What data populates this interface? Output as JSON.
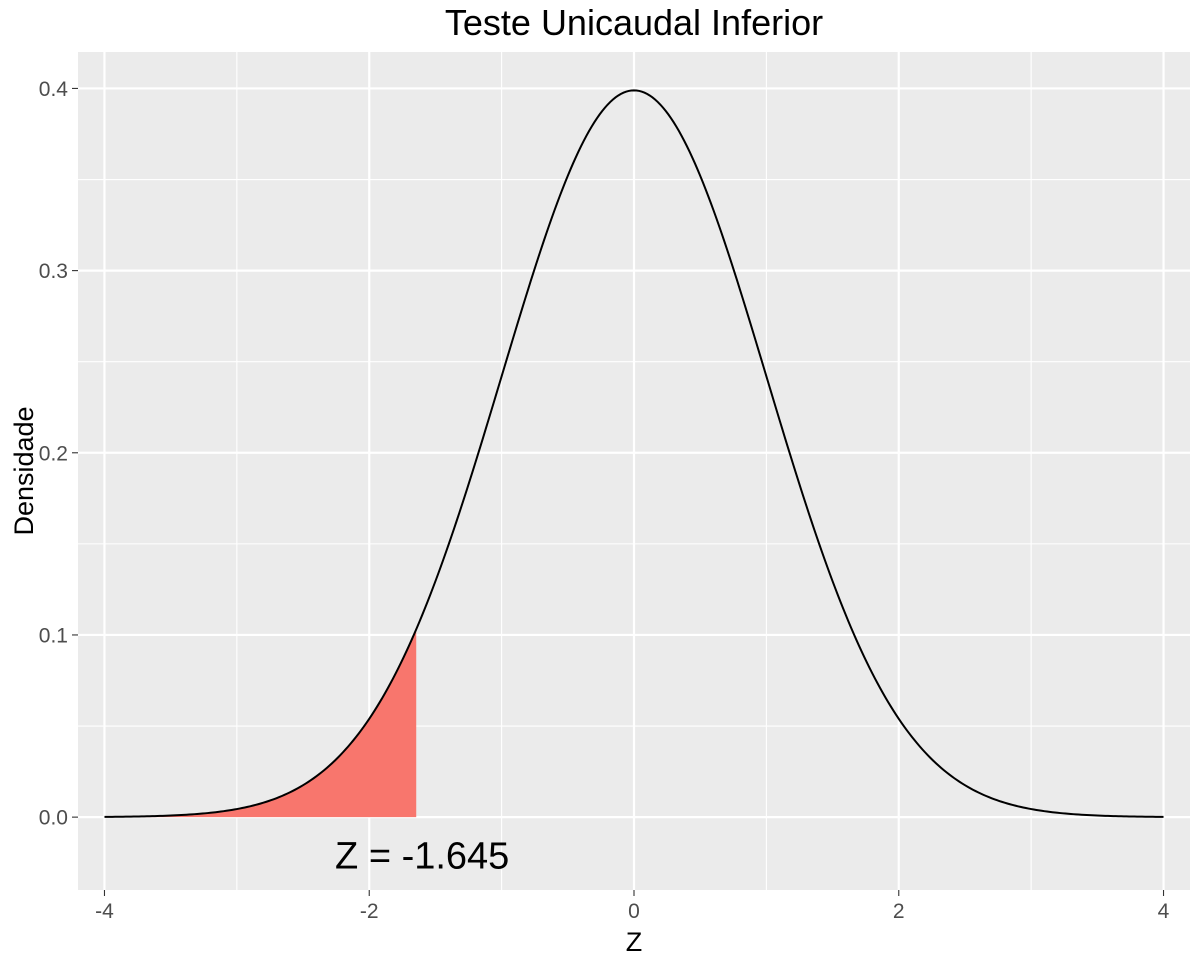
{
  "chart_data": {
    "type": "area",
    "title": "Teste Unicaudal Inferior",
    "xlabel": "Z",
    "ylabel": "Densidade",
    "xlim": [
      -4.2,
      4.2
    ],
    "ylim": [
      -0.04,
      0.42
    ],
    "x_ticks": [
      -4,
      -2,
      0,
      2,
      4
    ],
    "x_tick_labels": [
      "-4",
      "-2",
      "0",
      "2",
      "4"
    ],
    "y_ticks": [
      0.0,
      0.1,
      0.2,
      0.3,
      0.4
    ],
    "y_tick_labels": [
      "0.0",
      "0.1",
      "0.2",
      "0.3",
      "0.4"
    ],
    "grid": true,
    "curve": {
      "distribution": "standard normal density",
      "x_range": [
        -4,
        4
      ],
      "color": "#000000"
    },
    "shaded_region": {
      "x_from": -4,
      "x_to": -1.645,
      "color": "#f8766d"
    },
    "annotation": {
      "text": "Z = -1.645",
      "x": -1.6,
      "y": -0.021
    },
    "colors": {
      "panel": "#ebebeb",
      "grid": "#ffffff",
      "tick_text": "#4d4d4d"
    }
  }
}
